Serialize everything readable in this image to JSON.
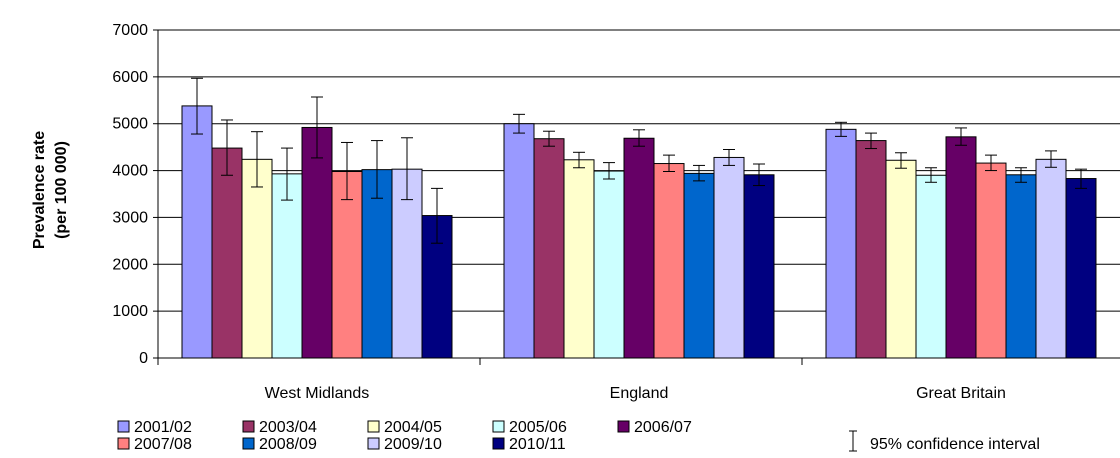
{
  "chart_data": {
    "type": "bar",
    "title": "",
    "xlabel": "",
    "ylabel_line1": "Prevalence rate",
    "ylabel_line2": "(per 100 000)",
    "ylim": [
      0,
      7000
    ],
    "yticks": [
      "0",
      "1000",
      "2000",
      "3000",
      "4000",
      "5000",
      "6000",
      "7000"
    ],
    "grid": "horizontal",
    "legend_position": "bottom",
    "ci_label": "95% confidence interval",
    "categories": [
      "West Midlands",
      "England",
      "Great Britain"
    ],
    "series": [
      {
        "name": "2001/02",
        "color": "#9999ff",
        "values": [
          5380,
          5000,
          4880
        ],
        "ci_low": [
          4780,
          4800,
          4730
        ],
        "ci_high": [
          5970,
          5200,
          5030
        ]
      },
      {
        "name": "2003/04",
        "color": "#993366",
        "values": [
          4480,
          4680,
          4640
        ],
        "ci_low": [
          3900,
          4520,
          4470
        ],
        "ci_high": [
          5080,
          4840,
          4800
        ]
      },
      {
        "name": "2004/05",
        "color": "#ffffcc",
        "values": [
          4240,
          4230,
          4220
        ],
        "ci_low": [
          3650,
          4060,
          4050
        ],
        "ci_high": [
          4830,
          4390,
          4380
        ]
      },
      {
        "name": "2005/06",
        "color": "#ccffff",
        "values": [
          3930,
          3990,
          3900
        ],
        "ci_low": [
          3370,
          3820,
          3750
        ],
        "ci_high": [
          4480,
          4170,
          4060
        ]
      },
      {
        "name": "2006/07",
        "color": "#660066",
        "values": [
          4920,
          4690,
          4720
        ],
        "ci_low": [
          4270,
          4520,
          4540
        ],
        "ci_high": [
          5570,
          4870,
          4910
        ]
      },
      {
        "name": "2007/08",
        "color": "#ff8080",
        "values": [
          3980,
          4150,
          4160
        ],
        "ci_low": [
          3380,
          3980,
          4000
        ],
        "ci_high": [
          4600,
          4330,
          4330
        ]
      },
      {
        "name": "2008/09",
        "color": "#0066cc",
        "values": [
          4020,
          3940,
          3910
        ],
        "ci_low": [
          3410,
          3780,
          3750
        ],
        "ci_high": [
          4640,
          4110,
          4060
        ]
      },
      {
        "name": "2009/10",
        "color": "#ccccff",
        "values": [
          4030,
          4280,
          4240
        ],
        "ci_low": [
          3380,
          4110,
          4070
        ],
        "ci_high": [
          4700,
          4450,
          4420
        ]
      },
      {
        "name": "2010/11",
        "color": "#000080",
        "values": [
          3040,
          3910,
          3830
        ],
        "ci_low": [
          2450,
          3680,
          3620
        ],
        "ci_high": [
          3620,
          4140,
          4030
        ]
      }
    ]
  }
}
